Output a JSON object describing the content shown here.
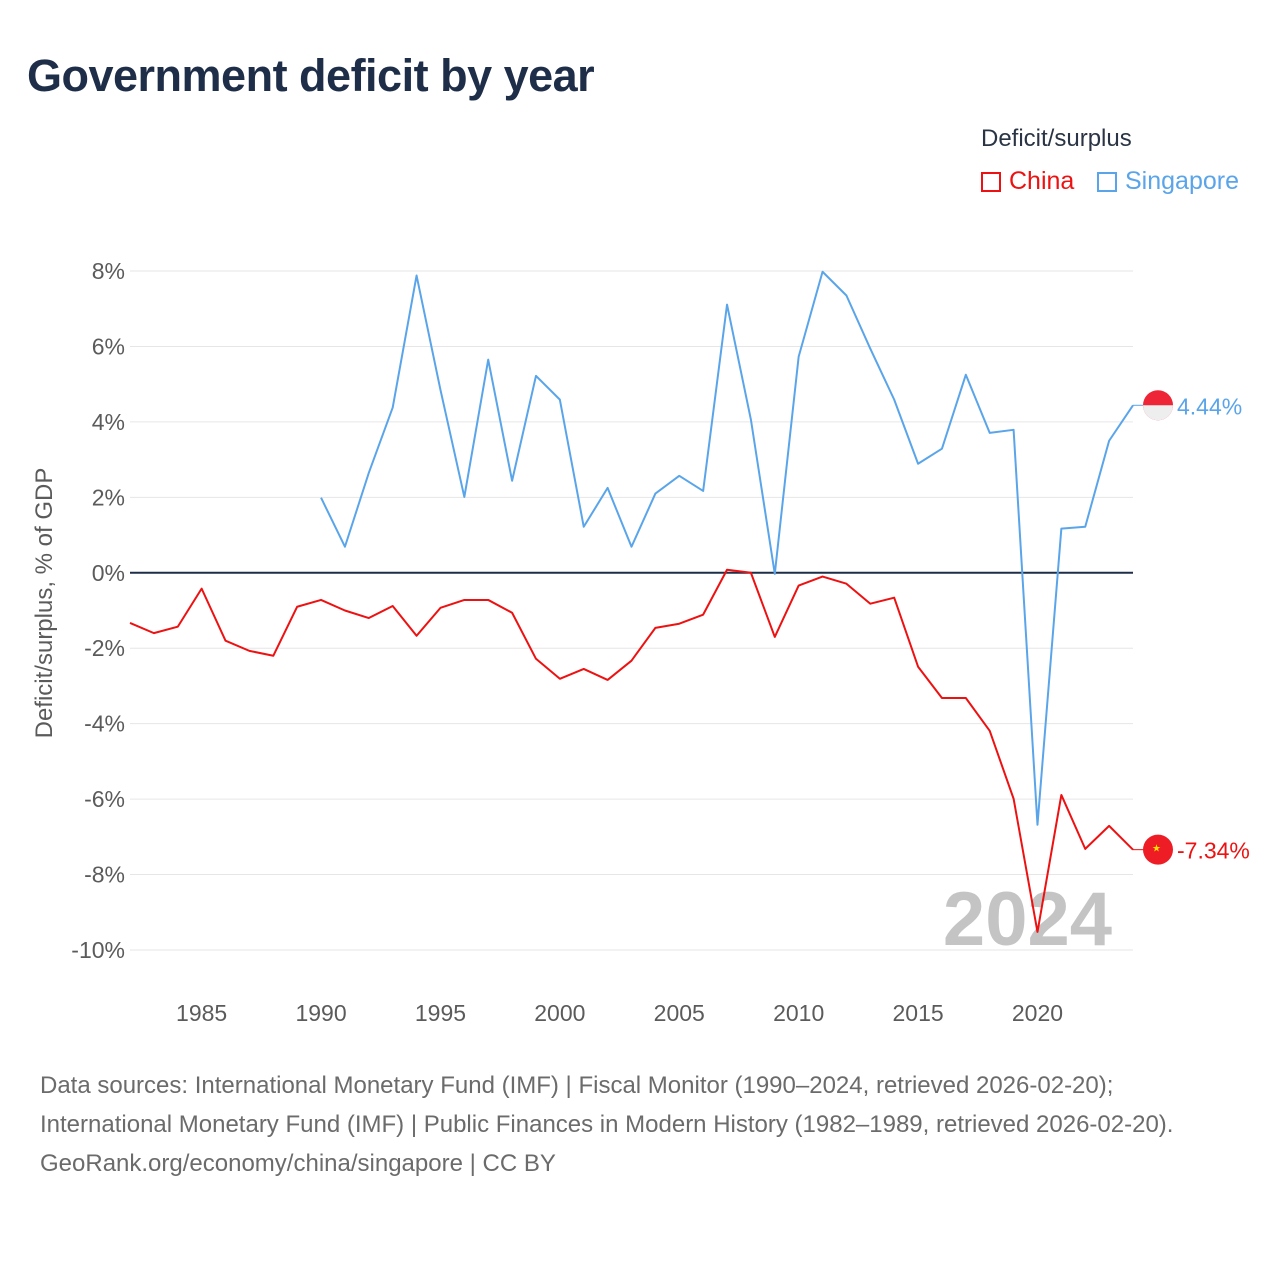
{
  "title": "Government deficit by year",
  "legend": {
    "title": "Deficit/surplus"
  },
  "footer": {
    "sources": "Data sources: International Monetary Fund (IMF) | Fiscal Monitor (1990–2024, retrieved 2026-02-20); International Monetary Fund (IMF) | Public Finances in Modern History (1982–1989, retrieved 2026-02-20).",
    "credit": "GeoRank.org/economy/china/singapore | CC BY"
  },
  "chart_data": {
    "type": "line",
    "title": "Government deficit by year",
    "xlabel": "",
    "ylabel": "Deficit/surplus, % of GDP",
    "xlim": [
      1982,
      2024
    ],
    "ylim": [
      -10,
      8
    ],
    "x_ticks": [
      1985,
      1990,
      1995,
      2000,
      2005,
      2010,
      2015,
      2020
    ],
    "y_ticks": [
      8,
      6,
      4,
      2,
      0,
      -2,
      -4,
      -6,
      -8,
      -10
    ],
    "y_tick_labels": [
      "8%",
      "6%",
      "4%",
      "2%",
      "0%",
      "-2%",
      "-4%",
      "-6%",
      "-8%",
      "-10%"
    ],
    "year_watermark": "2024",
    "grid": true,
    "legend_position": "top-right",
    "series": [
      {
        "name": "China",
        "color": "#ee1111",
        "end_label": "-7.34%",
        "start_year": 1982,
        "values": [
          -1.33,
          -1.6,
          -1.43,
          -0.42,
          -1.8,
          -2.07,
          -2.2,
          -0.9,
          -0.72,
          -1.0,
          -1.2,
          -0.88,
          -1.67,
          -0.93,
          -0.72,
          -0.72,
          -1.06,
          -2.28,
          -2.81,
          -2.55,
          -2.84,
          -2.33,
          -1.46,
          -1.35,
          -1.11,
          0.08,
          0.0,
          -1.7,
          -0.34,
          -0.1,
          -0.29,
          -0.82,
          -0.66,
          -2.49,
          -3.32,
          -3.32,
          -4.19,
          -5.99,
          -9.52,
          -5.89,
          -7.32,
          -6.71,
          -7.34
        ]
      },
      {
        "name": "Singapore",
        "color": "#5aa5ea",
        "end_label": "4.44%",
        "start_year": 1990,
        "values": [
          1.99,
          0.69,
          2.65,
          4.38,
          7.88,
          4.85,
          2.01,
          5.65,
          2.44,
          5.22,
          4.59,
          1.22,
          2.25,
          0.69,
          2.1,
          2.57,
          2.17,
          7.11,
          4.06,
          -0.03,
          5.73,
          7.98,
          7.35,
          5.94,
          4.59,
          2.89,
          3.29,
          5.25,
          3.71,
          3.79,
          -6.68,
          1.17,
          1.22,
          3.5,
          4.44
        ]
      }
    ]
  }
}
